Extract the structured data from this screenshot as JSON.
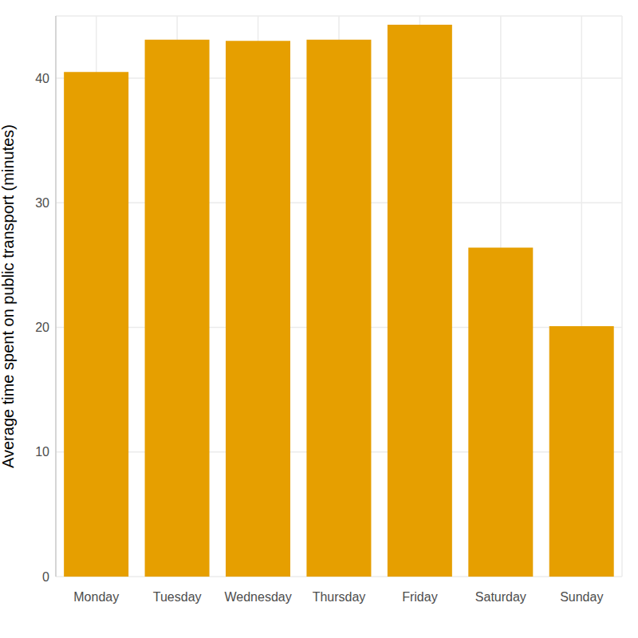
{
  "chart_data": {
    "type": "bar",
    "y_label": "Average time spent on public transport (minutes)",
    "categories": [
      "Monday",
      "Tuesday",
      "Wednesday",
      "Thursday",
      "Friday",
      "Saturday",
      "Sunday"
    ],
    "values": [
      40.5,
      43.1,
      43.0,
      43.1,
      44.3,
      26.4,
      20.1
    ],
    "color": "#E69F00",
    "ylim": [
      0,
      45
    ],
    "yticks": [
      0,
      10,
      20,
      30,
      40
    ],
    "grid": true
  }
}
